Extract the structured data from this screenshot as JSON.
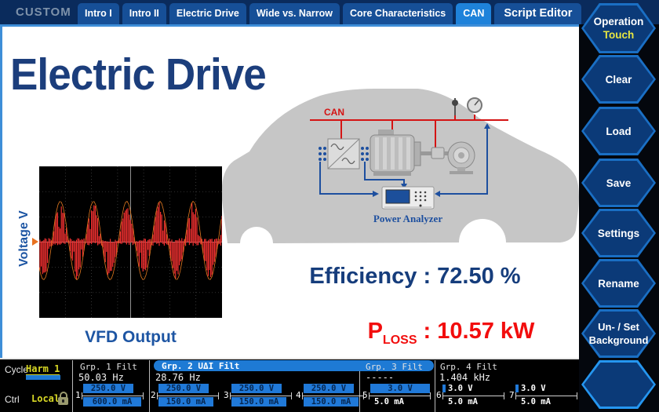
{
  "header": {
    "brand": "CUSTOM",
    "tabs": [
      {
        "label": "Intro I"
      },
      {
        "label": "Intro II"
      },
      {
        "label": "Electric Drive"
      },
      {
        "label": "Wide vs. Narrow"
      },
      {
        "label": "Core Characteristics"
      },
      {
        "label": "CAN",
        "active": true
      },
      {
        "label": "Script Editor"
      }
    ]
  },
  "sidebar": {
    "buttons": [
      {
        "label": "Operation",
        "sublabel": "Touch"
      },
      {
        "label": "Clear"
      },
      {
        "label": "Load"
      },
      {
        "label": "Save"
      },
      {
        "label": "Settings"
      },
      {
        "label": "Rename"
      },
      {
        "label": "Un- / Set",
        "label2": "Background"
      },
      {
        "label": ""
      }
    ]
  },
  "main": {
    "title": "Electric Drive",
    "scope": {
      "ylabel": "Voltage V",
      "caption": "VFD Output",
      "type": "pwm_sine",
      "cycles": 5.5
    },
    "diagram": {
      "can_label": "CAN",
      "analyzer_label": "Power Analyzer"
    },
    "metrics": {
      "efficiency_label": "Efficiency",
      "efficiency_sep": " : ",
      "efficiency_value": "72.50 %",
      "ploss_p": "P",
      "ploss_sub": "LOSS",
      "ploss_sep": " : ",
      "ploss_value": "10.57 kW"
    }
  },
  "statusbar": {
    "cycle_label": "Cycle",
    "cycle_value": "Harm 1",
    "ctrl_label": "Ctrl",
    "ctrl_value": "Local",
    "groups": [
      {
        "name": "Grp. 1 Filt",
        "freq": "50.03 Hz"
      },
      {
        "name": "Grp. 2 UΔI Filt",
        "freq": "28.76 Hz",
        "highlight": true
      },
      {
        "name": "Grp. 3 Filt",
        "freq": "-----"
      },
      {
        "name": "Grp. 4 Filt",
        "freq": "1.404 kHz"
      }
    ],
    "channels": [
      {
        "num": "1",
        "v": "250.0 V",
        "a": "600.0 mA"
      },
      {
        "num": "2",
        "v": "250.0 V",
        "a": "150.0 mA"
      },
      {
        "num": "3",
        "v": "250.0 V",
        "a": "150.0 mA"
      },
      {
        "num": "4",
        "v": "250.0 V",
        "a": "150.0 mA"
      },
      {
        "num": "5",
        "v": "3.0 V",
        "a": "5.0 mA"
      },
      {
        "num": "6",
        "v": "3.0 V",
        "a": "5.0 mA"
      },
      {
        "num": "7",
        "v": "3.0 V",
        "a": "5.0 mA"
      }
    ]
  },
  "colors": {
    "accent_blue": "#1e82da",
    "highlight_bar": "#2079d8",
    "warning_yellow": "#d8d825",
    "alert_red": "#f20d0d",
    "title_blue": "#1c3e7c",
    "waveform_red": "#ee2f2f",
    "envelope_orange": "#e2791f",
    "can_red": "#d41414"
  }
}
